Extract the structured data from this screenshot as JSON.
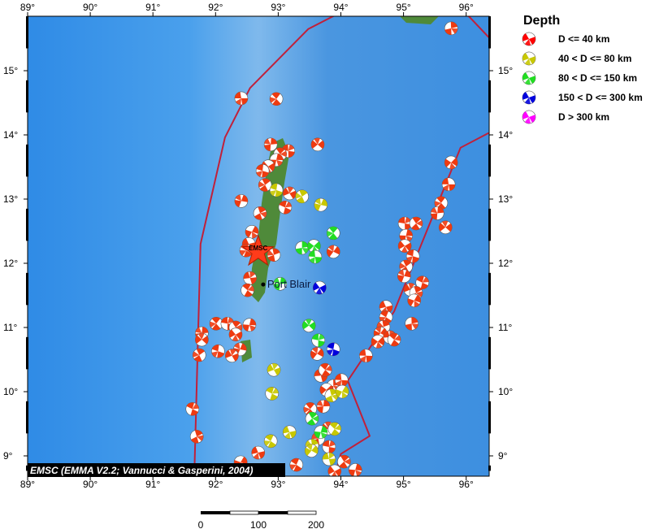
{
  "map": {
    "lon_range": [
      89,
      96.36
    ],
    "lat_range": [
      8.67,
      15.85
    ],
    "lon_ticks": [
      "89°",
      "90°",
      "91°",
      "92°",
      "93°",
      "94°",
      "95°",
      "96°"
    ],
    "lat_ticks": [
      "9°",
      "10°",
      "11°",
      "12°",
      "13°",
      "14°",
      "15°"
    ],
    "credit": "EMSC (EMMA V2.2; Vannucci & Gasperini, 2004)",
    "place_label": "Port Blair",
    "place": {
      "lon": 92.76,
      "lat": 11.67
    },
    "epicenter": {
      "lon": 92.68,
      "lat": 12.18,
      "label": "EMSC",
      "color": "#ff3b1a"
    },
    "boundary_color": "#c0203a",
    "ocean_color": "#3d8fe0",
    "land_color": "#4f8a3a"
  },
  "scale_bar": {
    "labels": [
      "0",
      "100",
      "200"
    ]
  },
  "legend": {
    "title": "Depth",
    "items": [
      {
        "label": "D <= 40 km",
        "color": "#ff0000"
      },
      {
        "label": "40 < D <= 80 km",
        "color": "#c8c800"
      },
      {
        "label": "80 < D <= 150 km",
        "color": "#22dd22"
      },
      {
        "label": "150 < D <= 300 km",
        "color": "#0000dd"
      },
      {
        "label": "D > 300 km",
        "color": "#ff00ff"
      }
    ]
  },
  "events": [
    [
      92.41,
      14.57,
      0
    ],
    [
      92.97,
      14.56,
      0
    ],
    [
      92.88,
      13.85,
      0
    ],
    [
      93.63,
      13.85,
      0
    ],
    [
      93.16,
      13.75,
      0
    ],
    [
      93.03,
      13.7,
      0
    ],
    [
      92.97,
      13.61,
      0
    ],
    [
      92.84,
      13.51,
      0
    ],
    [
      92.75,
      13.44,
      0
    ],
    [
      92.79,
      13.22,
      0
    ],
    [
      92.41,
      12.97,
      0
    ],
    [
      93.18,
      13.09,
      0
    ],
    [
      93.11,
      12.87,
      0
    ],
    [
      92.71,
      12.78,
      0
    ],
    [
      92.58,
      12.49,
      0
    ],
    [
      92.53,
      12.3,
      0
    ],
    [
      92.49,
      12.2,
      0
    ],
    [
      92.93,
      12.13,
      0
    ],
    [
      93.88,
      12.18,
      0
    ],
    [
      92.55,
      11.77,
      0
    ],
    [
      92.51,
      11.58,
      0
    ],
    [
      95.76,
      15.66,
      0
    ],
    [
      95.76,
      13.57,
      0
    ],
    [
      95.72,
      13.23,
      0
    ],
    [
      95.6,
      12.94,
      0
    ],
    [
      95.54,
      12.78,
      0
    ],
    [
      95.67,
      12.56,
      0
    ],
    [
      95.02,
      12.62,
      0
    ],
    [
      95.2,
      12.62,
      0
    ],
    [
      95.04,
      12.43,
      0
    ],
    [
      95.02,
      12.27,
      0
    ],
    [
      95.15,
      12.11,
      0
    ],
    [
      95.04,
      11.95,
      0
    ],
    [
      95.01,
      11.8,
      0
    ],
    [
      95.11,
      11.59,
      0
    ],
    [
      95.3,
      11.7,
      0
    ],
    [
      95.2,
      11.54,
      0
    ],
    [
      95.17,
      11.42,
      0
    ],
    [
      94.72,
      11.32,
      0
    ],
    [
      94.72,
      11.16,
      0
    ],
    [
      94.68,
      11.01,
      0
    ],
    [
      94.63,
      10.91,
      0
    ],
    [
      94.78,
      10.85,
      0
    ],
    [
      94.85,
      10.81,
      0
    ],
    [
      95.13,
      11.06,
      0
    ],
    [
      94.59,
      10.78,
      0
    ],
    [
      94.4,
      10.56,
      0
    ],
    [
      92.01,
      11.06,
      0
    ],
    [
      91.78,
      10.91,
      0
    ],
    [
      91.78,
      10.81,
      0
    ],
    [
      92.19,
      11.06,
      0
    ],
    [
      92.32,
      11.0,
      0
    ],
    [
      92.54,
      11.04,
      0
    ],
    [
      92.32,
      10.89,
      0
    ],
    [
      92.04,
      10.63,
      0
    ],
    [
      91.74,
      10.57,
      0
    ],
    [
      92.39,
      10.66,
      0
    ],
    [
      92.26,
      10.56,
      0
    ],
    [
      91.63,
      9.73,
      0
    ],
    [
      91.7,
      9.3,
      0
    ],
    [
      92.4,
      8.9,
      0
    ],
    [
      92.68,
      9.05,
      0
    ],
    [
      93.29,
      8.86,
      0
    ],
    [
      93.64,
      9.27,
      0
    ],
    [
      93.62,
      10.59,
      0
    ],
    [
      93.68,
      10.25,
      0
    ],
    [
      93.75,
      10.34,
      0
    ],
    [
      93.88,
      10.09,
      0
    ],
    [
      93.77,
      10.03,
      0
    ],
    [
      94.01,
      10.18,
      0
    ],
    [
      93.51,
      9.73,
      0
    ],
    [
      93.72,
      9.77,
      0
    ],
    [
      93.8,
      9.43,
      0
    ],
    [
      93.81,
      9.14,
      0
    ],
    [
      94.05,
      8.91,
      0
    ],
    [
      94.23,
      8.78,
      0
    ],
    [
      93.9,
      8.76,
      0
    ],
    [
      92.97,
      13.14,
      1
    ],
    [
      93.38,
      13.04,
      1
    ],
    [
      93.68,
      12.91,
      1
    ],
    [
      92.93,
      10.34,
      1
    ],
    [
      92.9,
      9.97,
      1
    ],
    [
      93.85,
      9.94,
      1
    ],
    [
      94.02,
      10.0,
      1
    ],
    [
      93.18,
      9.37,
      1
    ],
    [
      92.88,
      9.23,
      1
    ],
    [
      93.54,
      9.16,
      1
    ],
    [
      93.53,
      9.08,
      1
    ],
    [
      93.81,
      8.95,
      1
    ],
    [
      93.9,
      9.42,
      1
    ],
    [
      93.38,
      12.24,
      2
    ],
    [
      93.57,
      12.27,
      2
    ],
    [
      93.59,
      12.1,
      2
    ],
    [
      93.88,
      12.47,
      2
    ],
    [
      93.03,
      11.68,
      2
    ],
    [
      93.49,
      11.03,
      2
    ],
    [
      93.64,
      10.8,
      2
    ],
    [
      93.54,
      9.58,
      2
    ],
    [
      93.68,
      9.37,
      2
    ],
    [
      93.66,
      11.62,
      3
    ],
    [
      93.88,
      10.66,
      3
    ]
  ],
  "boundary": [
    [
      [
        91.66,
        8.67
      ],
      [
        91.71,
        10.5
      ],
      [
        91.76,
        12.3
      ],
      [
        92.15,
        13.96
      ],
      [
        92.55,
        14.73
      ],
      [
        93.48,
        15.65
      ],
      [
        94.32,
        16.07
      ],
      [
        95.13,
        16.11
      ],
      [
        95.52,
        16.11
      ],
      [
        96.05,
        15.84
      ],
      [
        96.36,
        15.52
      ]
    ],
    [
      [
        96.36,
        14.03
      ],
      [
        95.91,
        13.8
      ],
      [
        94.85,
        11.25
      ],
      [
        94.11,
        10.17
      ],
      [
        94.46,
        9.31
      ],
      [
        94.0,
        9.03
      ],
      [
        93.9,
        8.67
      ]
    ]
  ]
}
